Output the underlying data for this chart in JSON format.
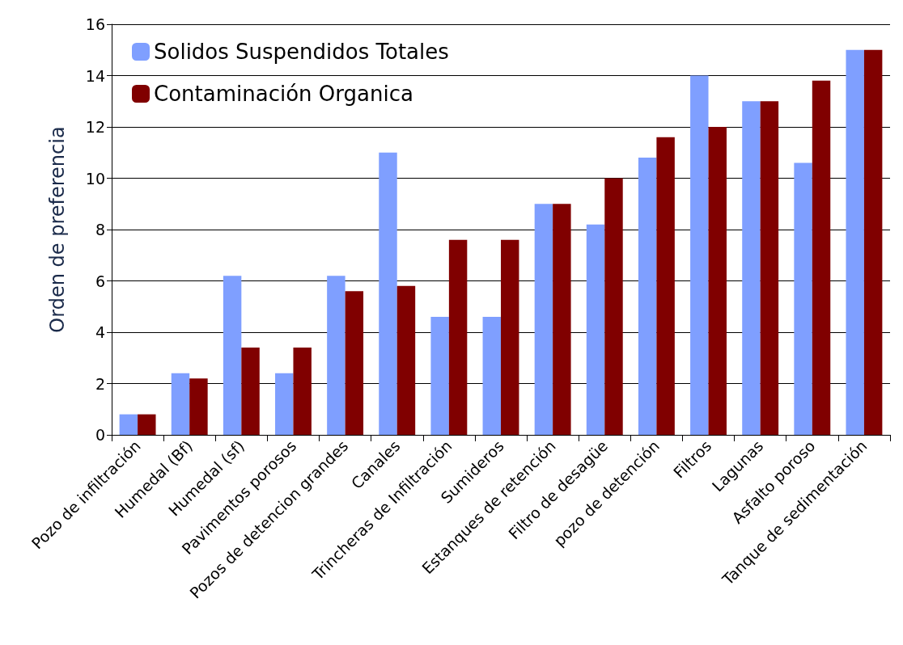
{
  "chart_data": {
    "type": "bar",
    "ylabel": "Orden de preferencia",
    "categories": [
      "Pozo de infiltración",
      "Humedal (Bf)",
      "Humedal (sf)",
      "Pavimentos porosos",
      "Pozos de detencion grandes",
      "Canales",
      "Trincheras de Infiltración",
      "Sumideros",
      "Estanques de retención",
      "Filtro de desagüe",
      "pozo de detención",
      "Filtros",
      "Lagunas",
      "Asfalto poroso",
      "Tanque de sedimentación"
    ],
    "series": [
      {
        "name": "Solidos Suspendidos Totales",
        "color": "#7f9fff",
        "values": [
          0.8,
          2.4,
          6.2,
          2.4,
          6.2,
          11,
          4.6,
          4.6,
          9,
          8.2,
          10.8,
          14,
          13,
          10.6,
          15
        ]
      },
      {
        "name": "Contaminación Organica",
        "color": "#800000",
        "values": [
          0.8,
          2.2,
          3.4,
          3.4,
          5.6,
          5.8,
          7.6,
          7.6,
          9,
          10,
          11.6,
          12,
          13,
          13.8,
          15
        ]
      }
    ],
    "ylim": [
      0,
      16
    ],
    "yticks": [
      0,
      2,
      4,
      6,
      8,
      10,
      12,
      14,
      16
    ],
    "grid": "y",
    "legend": "top left"
  }
}
